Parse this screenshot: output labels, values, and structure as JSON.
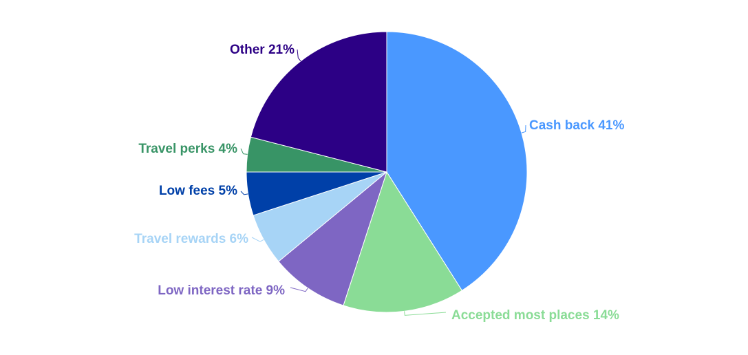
{
  "chart_data": {
    "type": "pie",
    "title": "",
    "legend": "none",
    "start_angle_deg": 0,
    "direction": "clockwise",
    "slices": [
      {
        "name": "Cash back",
        "value": 41,
        "label": "Cash back 41%",
        "color": "#4a98ff"
      },
      {
        "name": "Accepted most places",
        "value": 14,
        "label": "Accepted most places 14%",
        "color": "#8adc96"
      },
      {
        "name": "Low interest rate",
        "value": 9,
        "label": "Low interest rate 9%",
        "color": "#7e66c3"
      },
      {
        "name": "Travel rewards",
        "value": 6,
        "label": "Travel rewards 6%",
        "color": "#a7d4f6"
      },
      {
        "name": "Low fees",
        "value": 5,
        "label": "Low fees 5%",
        "color": "#0040a8"
      },
      {
        "name": "Travel perks",
        "value": 4,
        "label": "Travel perks 4%",
        "color": "#389466"
      },
      {
        "name": "Other",
        "value": 21,
        "label": "Other 21%",
        "color": "#2c0085"
      }
    ]
  }
}
